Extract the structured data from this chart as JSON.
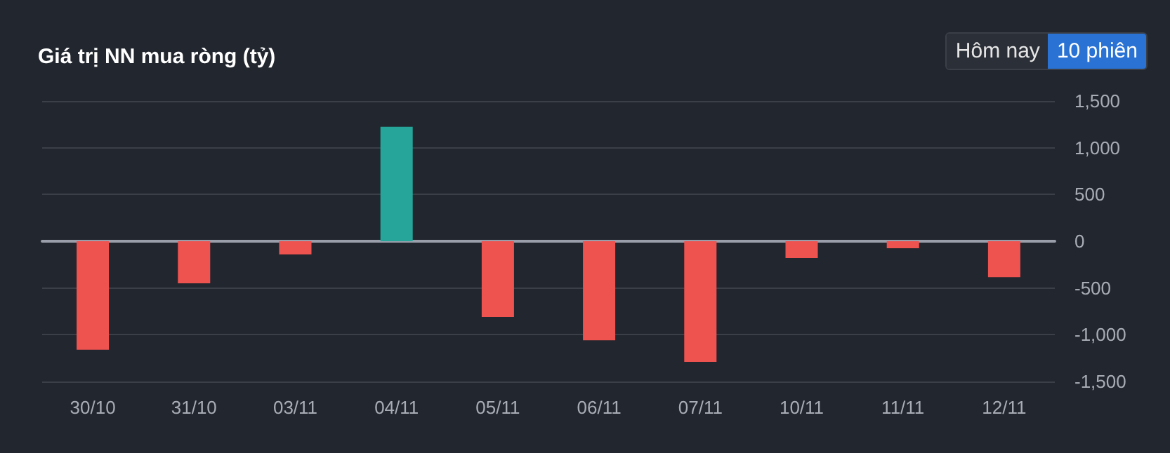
{
  "chart_data": {
    "type": "bar",
    "title": "Giá trị NN mua ròng (tỷ)",
    "annotations": [
      "Hôm nay",
      "10 phiên"
    ],
    "categories": [
      "30/10",
      "31/10",
      "03/11",
      "04/11",
      "05/11",
      "06/11",
      "07/11",
      "10/11",
      "11/11",
      "12/11"
    ],
    "values": [
      -1160,
      -450,
      -140,
      1225,
      -810,
      -1060,
      -1290,
      -180,
      -75,
      -385
    ],
    "colors": [
      "#ef5350",
      "#ef5350",
      "#ef5350",
      "#26a69a",
      "#ef5350",
      "#ef5350",
      "#ef5350",
      "#ef5350",
      "#ef5350",
      "#ef5350"
    ],
    "ylim": [
      -1500,
      1500
    ],
    "yticks": [
      {
        "value": -1500,
        "label": "-1,500"
      },
      {
        "value": -1000,
        "label": "-1,000"
      },
      {
        "value": -500,
        "label": "-500"
      },
      0,
      500,
      {
        "value": 1000,
        "label": "1,000"
      },
      {
        "value": 1500,
        "label": "1,500"
      }
    ],
    "grid": "y"
  }
}
